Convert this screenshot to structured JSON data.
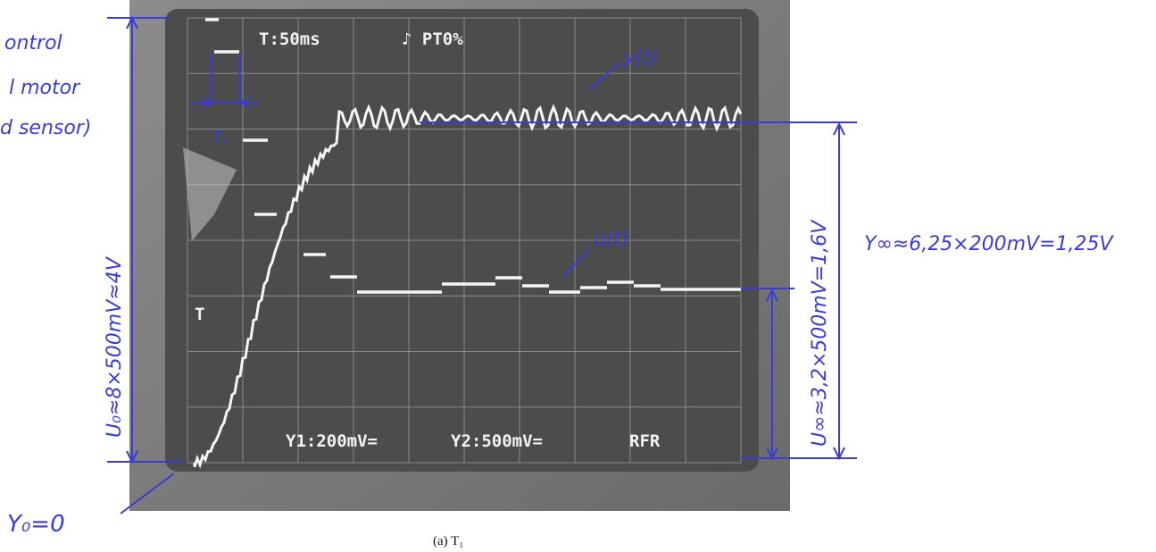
{
  "scope": {
    "time_div": "T:50ms",
    "trigger": "♪ PT0%",
    "ch1": "Y1:200mV=",
    "ch2": "Y2:500mV=",
    "mode": "RFR",
    "marker": "T"
  },
  "annotations": {
    "left_top": "ontrol",
    "left_mid": "l motor",
    "left_bot": "d sensor)",
    "period": "T₁",
    "y_label": "y(t)",
    "u_label": "u(t)",
    "u0": "U₀≈8×500mV≈4V",
    "u_inf": "U∞≈3,2×500mV=1,6V",
    "y_inf": "Y∞≈6,25×200mV=1,25V",
    "y0": "Y₀=0"
  },
  "caption": "(a) T₁"
}
